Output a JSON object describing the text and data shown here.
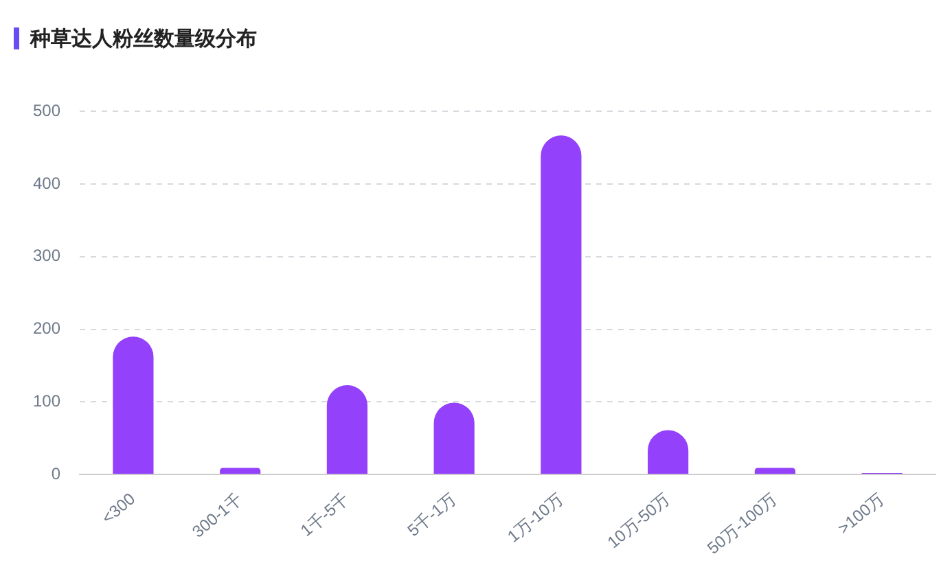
{
  "chart_data": {
    "type": "bar",
    "title": "种草达人粉丝数量级分布",
    "categories": [
      "<300",
      "300-1千",
      "1千-5千",
      "5千-1万",
      "1万-10万",
      "10万-50万",
      "50万-100万",
      ">100万"
    ],
    "values": [
      190,
      9,
      123,
      99,
      467,
      61,
      9,
      2
    ],
    "color": "#9441fb",
    "ylim": [
      0,
      500
    ],
    "yticks": [
      0,
      100,
      200,
      300,
      400,
      500
    ],
    "grid": "y",
    "legend": false
  }
}
